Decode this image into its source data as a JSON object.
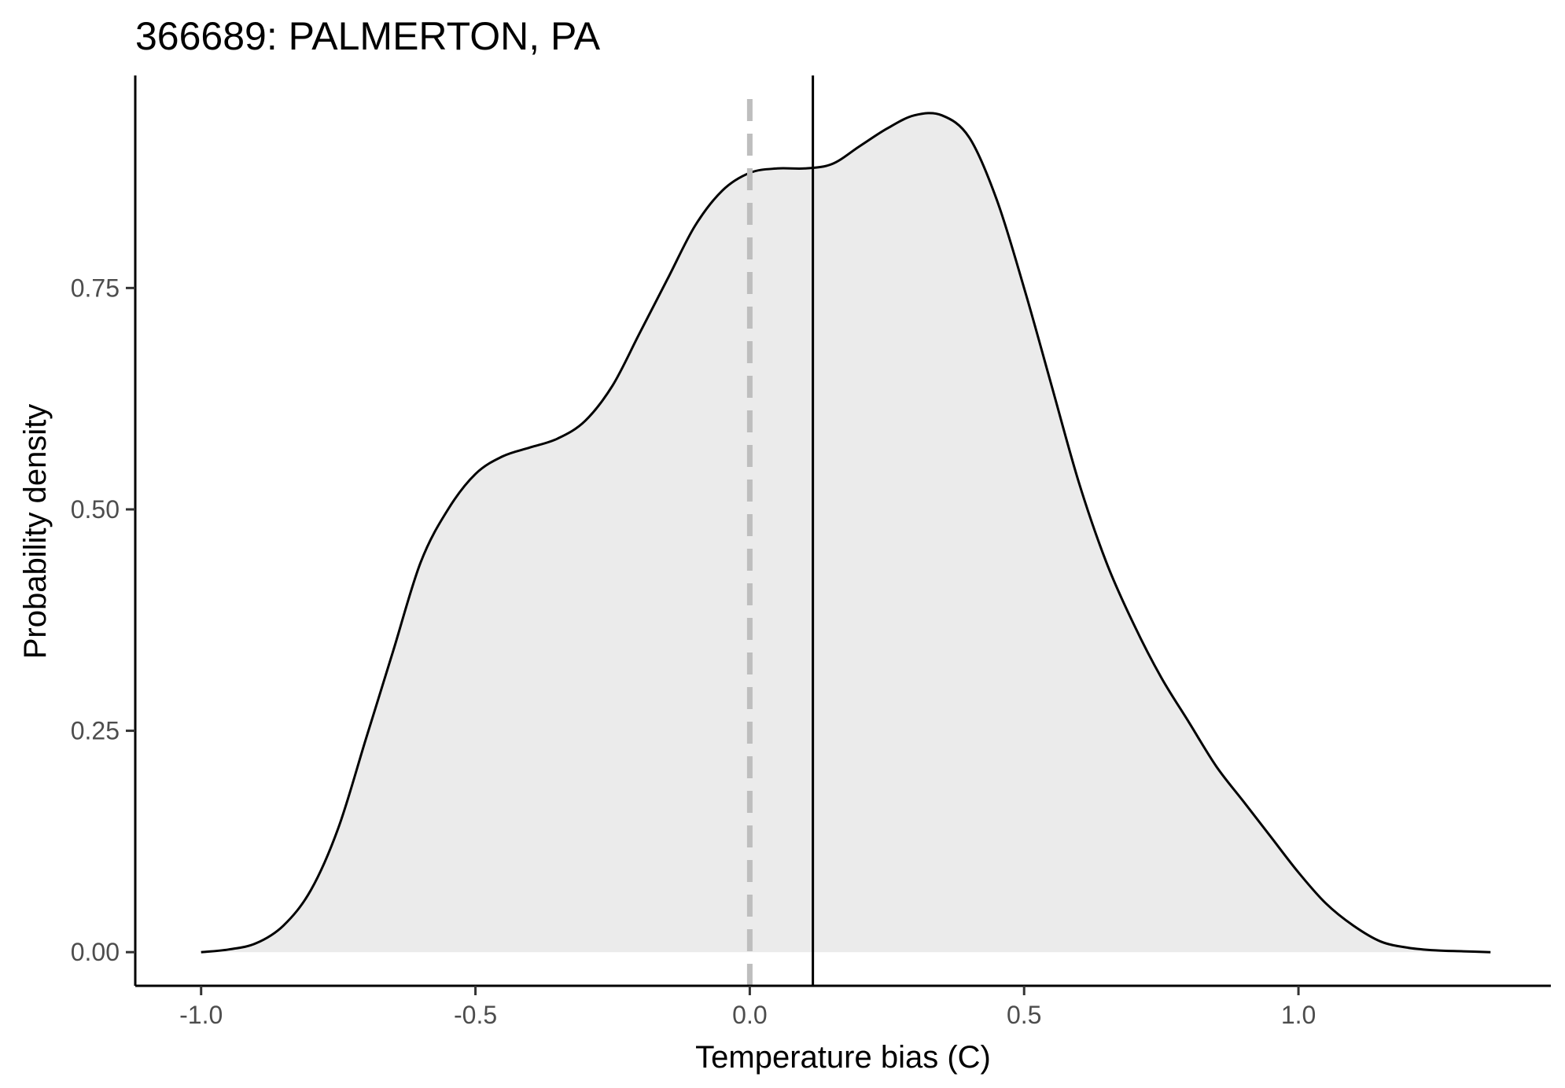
{
  "chart_data": {
    "type": "area",
    "title": "366689: PALMERTON, PA",
    "xlabel": "Temperature bias (C)",
    "ylabel": "Probability density",
    "xlim": [
      -1.12,
      1.46
    ],
    "ylim": [
      -0.038,
      0.99
    ],
    "x_ticks": [
      -1.0,
      -0.5,
      0.0,
      0.5,
      1.0
    ],
    "x_tick_labels": [
      "-1.0",
      "-0.5",
      "0.0",
      "0.5",
      "1.0"
    ],
    "y_ticks": [
      0.0,
      0.25,
      0.5,
      0.75
    ],
    "y_tick_labels": [
      "0.00",
      "0.25",
      "0.50",
      "0.75"
    ],
    "grid": false,
    "legend": "none",
    "series": [
      {
        "x": [
          -1.0,
          -0.95,
          -0.9,
          -0.85,
          -0.8,
          -0.75,
          -0.7,
          -0.65,
          -0.6,
          -0.55,
          -0.5,
          -0.45,
          -0.4,
          -0.35,
          -0.3,
          -0.25,
          -0.2,
          -0.15,
          -0.1,
          -0.05,
          0.0,
          0.05,
          0.1,
          0.15,
          0.2,
          0.25,
          0.3,
          0.35,
          0.4,
          0.45,
          0.5,
          0.55,
          0.6,
          0.65,
          0.7,
          0.75,
          0.8,
          0.85,
          0.9,
          0.95,
          1.0,
          1.05,
          1.1,
          1.15,
          1.2,
          1.25,
          1.3,
          1.35
        ],
        "y": [
          0.0,
          0.003,
          0.01,
          0.03,
          0.07,
          0.14,
          0.24,
          0.34,
          0.44,
          0.5,
          0.54,
          0.56,
          0.57,
          0.58,
          0.6,
          0.64,
          0.7,
          0.76,
          0.82,
          0.86,
          0.88,
          0.885,
          0.885,
          0.89,
          0.91,
          0.93,
          0.945,
          0.945,
          0.92,
          0.85,
          0.75,
          0.64,
          0.53,
          0.44,
          0.37,
          0.31,
          0.26,
          0.21,
          0.17,
          0.13,
          0.09,
          0.055,
          0.03,
          0.012,
          0.005,
          0.002,
          0.001,
          0.0
        ],
        "color": "#000000",
        "fill": "#ebebeb"
      }
    ],
    "reference_lines": [
      {
        "x": 0.0,
        "style": "dashed",
        "color": "#bebebe"
      },
      {
        "x": 0.115,
        "style": "solid",
        "color": "#000000"
      }
    ]
  }
}
